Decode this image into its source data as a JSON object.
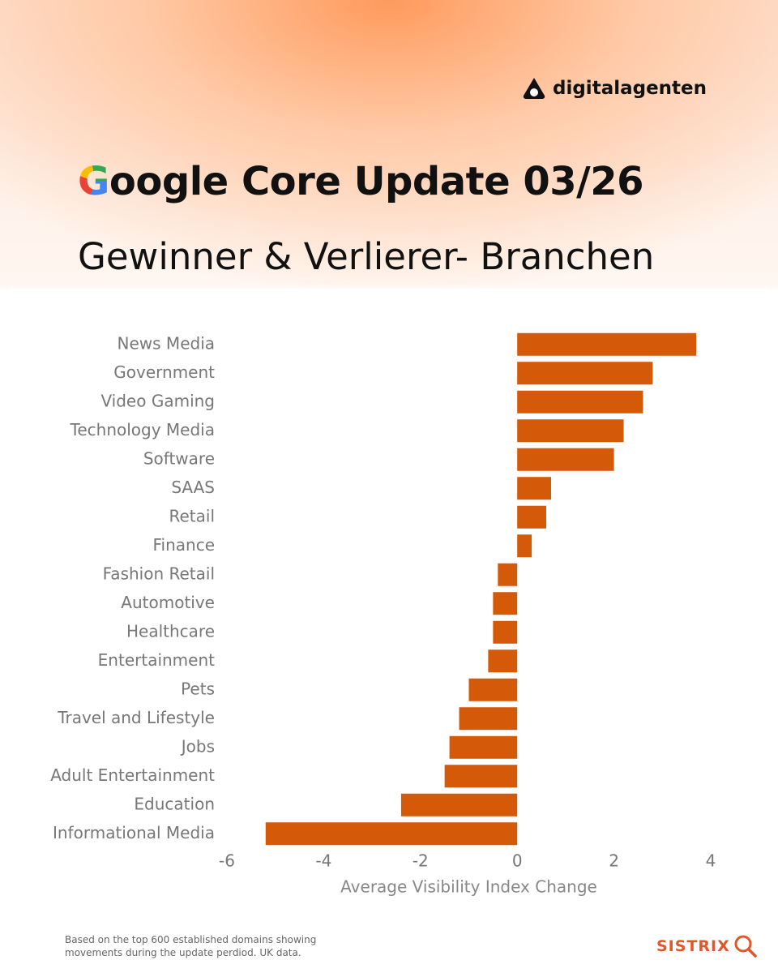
{
  "brand": "digitalagenten",
  "footnote": "Based on the top 600 established domains showing movements during the update perdiod. UK data.",
  "source": "SISTRIX",
  "chart_data": {
    "type": "barh",
    "title": "Google Core Update 03/26",
    "subtitle": "Gewinner & Verlierer- Branchen",
    "xlabel": "Average Visibility Index Change",
    "categories": [
      "News Media",
      "Government",
      "Video Gaming",
      "Technology Media",
      "Software",
      "SAAS",
      "Retail",
      "Finance",
      "Fashion Retail",
      "Automotive",
      "Healthcare",
      "Entertainment",
      "Pets",
      "Travel and Lifestyle",
      "Jobs",
      "Adult Entertainment",
      "Education",
      "Informational Media"
    ],
    "values": [
      3.7,
      2.8,
      2.6,
      2.2,
      2.0,
      0.7,
      0.6,
      0.3,
      -0.4,
      -0.5,
      -0.5,
      -0.6,
      -1.0,
      -1.2,
      -1.4,
      -1.5,
      -2.4,
      -5.2
    ],
    "color": "#d45a0a",
    "xlim": [
      -6,
      4
    ],
    "xticks": [
      -6,
      -4,
      -2,
      0,
      2,
      4
    ],
    "grid": false
  }
}
